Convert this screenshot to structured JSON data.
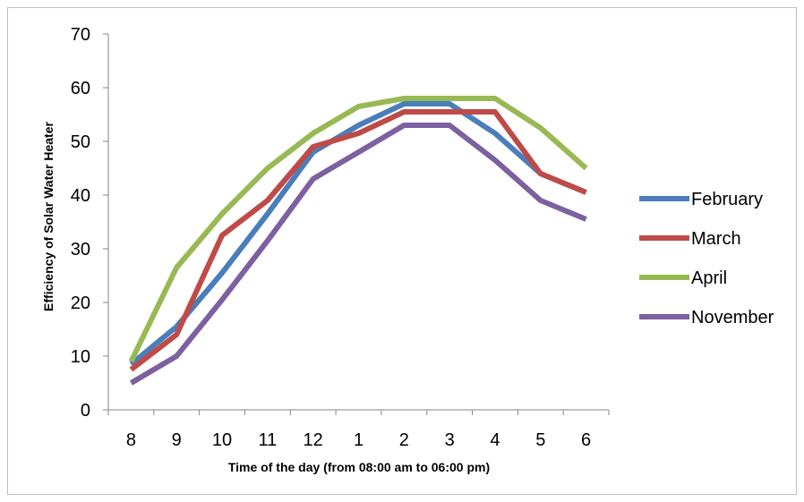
{
  "chart_data": {
    "type": "line",
    "title": "",
    "xlabel": "Time of the day (from 08:00 am to 06:00 pm)",
    "ylabel": "Efficiency of Solar Water Heater",
    "categories": [
      "8",
      "9",
      "10",
      "11",
      "12",
      "1",
      "2",
      "3",
      "4",
      "5",
      "6"
    ],
    "ylim": [
      0,
      70
    ],
    "yticks": [
      "0",
      "10",
      "20",
      "30",
      "40",
      "50",
      "60",
      "70"
    ],
    "grid": false,
    "legend_position": "right",
    "series": [
      {
        "name": "February",
        "color": "#4a7ebb",
        "values": [
          8.5,
          15.5,
          25.5,
          36.5,
          48,
          53,
          57,
          57,
          51.5,
          44,
          40.5
        ]
      },
      {
        "name": "March",
        "color": "#be4b48",
        "values": [
          7.5,
          14,
          32.5,
          39,
          49,
          51.5,
          55.5,
          55.5,
          55.5,
          44,
          40.5
        ]
      },
      {
        "name": "April",
        "color": "#98b954",
        "values": [
          9,
          26.5,
          36.5,
          45,
          51.5,
          56.5,
          58,
          58,
          58,
          52.5,
          45
        ]
      },
      {
        "name": "November",
        "color": "#7d60a0",
        "values": [
          5,
          10,
          20.5,
          31.5,
          43,
          48,
          53,
          53,
          46.5,
          39,
          35.5
        ]
      }
    ]
  }
}
